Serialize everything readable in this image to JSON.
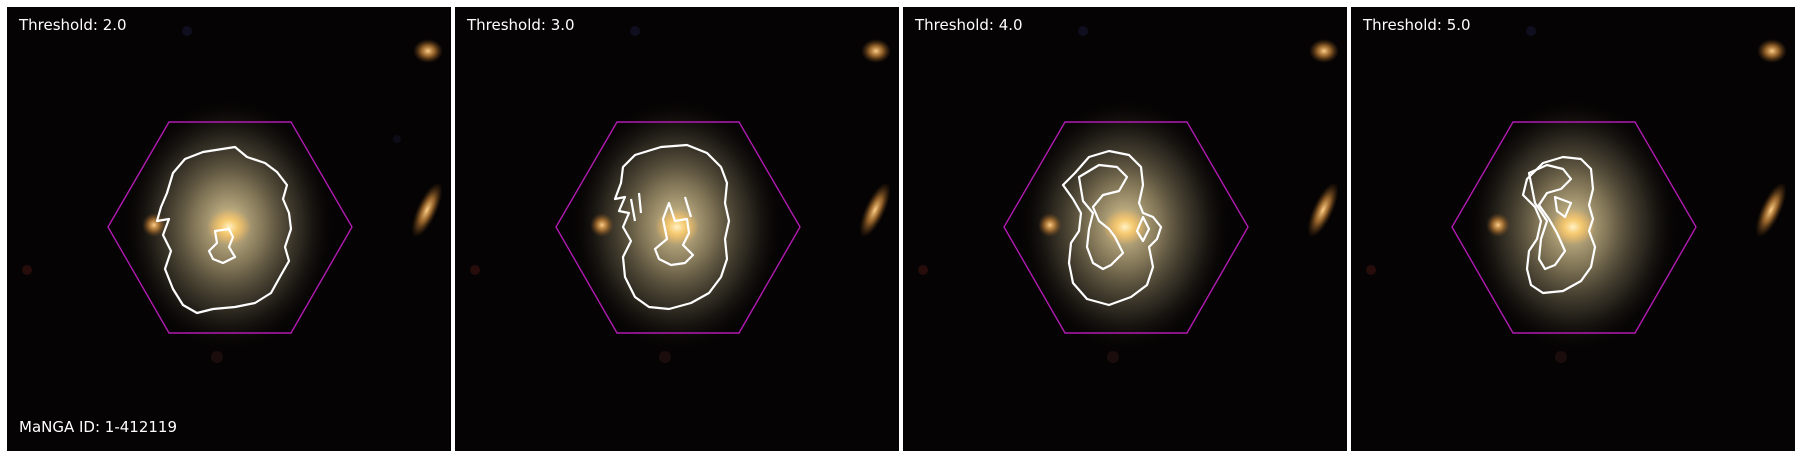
{
  "figure": {
    "galaxy_id_label": "MaNGA ID: 1-412119",
    "panels": [
      {
        "threshold_label": "Threshold: 2.0"
      },
      {
        "threshold_label": "Threshold: 3.0"
      },
      {
        "threshold_label": "Threshold: 4.0"
      },
      {
        "threshold_label": "Threshold: 5.0"
      }
    ]
  },
  "colors": {
    "background": "#050303",
    "hexagon": "#b01ab0",
    "contour": "#ffffff",
    "galaxy_core": "#ffd98a",
    "galaxy_disk": "#b9a77a"
  }
}
